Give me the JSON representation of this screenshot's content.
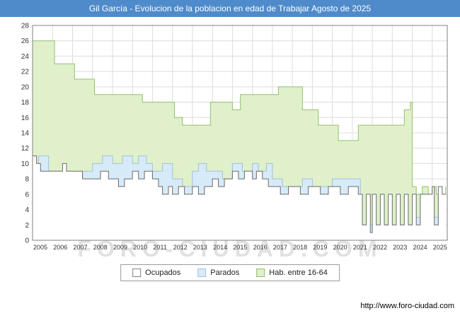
{
  "title_bar": {
    "text": "Gil García - Evolucion de la poblacion en edad de Trabajar Agosto de 2025",
    "bg": "#4f8bca"
  },
  "watermark": "FORO-CIUDAD.COM",
  "footer": {
    "url": "http://www.foro-ciudad.com"
  },
  "legend": [
    {
      "label": "Ocupados",
      "fill": "#ffffff",
      "border": "#808080"
    },
    {
      "label": "Parados",
      "fill": "#d7eaf8",
      "border": "#a3c1dc"
    },
    {
      "label": "Hab. entre 16-64",
      "fill": "#dff0cb",
      "border": "#96c06e"
    }
  ],
  "chart_data": {
    "type": "area",
    "title": "Gil García - Evolucion de la poblacion en edad de Trabajar Agosto de 2025",
    "xlabel": "",
    "ylabel": "",
    "x_range": [
      2005,
      2025.75
    ],
    "ylim": [
      0,
      28
    ],
    "x_ticks": [
      2005,
      2006,
      2007,
      2008,
      2009,
      2010,
      2011,
      2012,
      2013,
      2014,
      2015,
      2016,
      2017,
      2018,
      2019,
      2020,
      2021,
      2022,
      2023,
      2024,
      2025
    ],
    "y_ticks": [
      0,
      2,
      4,
      6,
      8,
      10,
      12,
      14,
      16,
      18,
      20,
      22,
      24,
      26,
      28
    ],
    "legend_position": "bottom",
    "grid": true,
    "colors": {
      "grid": "#dcdcdc",
      "plot_border": "#808080",
      "tick_text": "#333333"
    },
    "series": [
      {
        "name": "Hab. entre 16-64",
        "fill": "#dff0cb",
        "stroke": "#96c06e",
        "points": [
          [
            2005.0,
            26
          ],
          [
            2006.1,
            23
          ],
          [
            2007.1,
            21
          ],
          [
            2008.1,
            19
          ],
          [
            2010.5,
            18
          ],
          [
            2012.1,
            16
          ],
          [
            2012.5,
            15
          ],
          [
            2013.9,
            18
          ],
          [
            2015.0,
            17
          ],
          [
            2015.4,
            19
          ],
          [
            2017.3,
            20
          ],
          [
            2018.5,
            17
          ],
          [
            2019.3,
            15
          ],
          [
            2020.3,
            13
          ],
          [
            2021.3,
            15
          ],
          [
            2023.6,
            17
          ],
          [
            2023.9,
            18
          ],
          [
            2024.0,
            7
          ],
          [
            2024.2,
            6
          ],
          [
            2024.5,
            7
          ],
          [
            2024.8,
            6
          ],
          [
            2025.0,
            7
          ],
          [
            2025.2,
            6
          ],
          [
            2025.67,
            7
          ]
        ]
      },
      {
        "name": "Parados",
        "fill": "#d7eaf8",
        "stroke": "#a3c1dc",
        "points": [
          [
            2005.0,
            9
          ],
          [
            2005.3,
            11
          ],
          [
            2005.8,
            9
          ],
          [
            2006.0,
            9
          ],
          [
            2006.5,
            9
          ],
          [
            2007.0,
            8
          ],
          [
            2007.5,
            9
          ],
          [
            2008.0,
            10
          ],
          [
            2008.5,
            11
          ],
          [
            2009.0,
            10
          ],
          [
            2009.5,
            11
          ],
          [
            2010.0,
            10
          ],
          [
            2010.3,
            11
          ],
          [
            2010.7,
            10
          ],
          [
            2011.0,
            9
          ],
          [
            2011.5,
            10
          ],
          [
            2012.0,
            8
          ],
          [
            2012.5,
            7
          ],
          [
            2013.0,
            9
          ],
          [
            2013.3,
            10
          ],
          [
            2013.7,
            9
          ],
          [
            2014.0,
            9
          ],
          [
            2014.5,
            8
          ],
          [
            2015.0,
            10
          ],
          [
            2015.5,
            9
          ],
          [
            2016.0,
            10
          ],
          [
            2016.3,
            9
          ],
          [
            2016.7,
            10
          ],
          [
            2017.0,
            8
          ],
          [
            2017.5,
            7
          ],
          [
            2018.0,
            7
          ],
          [
            2018.5,
            8
          ],
          [
            2019.0,
            7
          ],
          [
            2019.5,
            7
          ],
          [
            2020.0,
            8
          ],
          [
            2020.5,
            8
          ],
          [
            2021.0,
            8
          ],
          [
            2021.4,
            2
          ],
          [
            2022.0,
            2
          ],
          [
            2023.0,
            2
          ],
          [
            2024.0,
            3
          ],
          [
            2025.0,
            3
          ],
          [
            2025.67,
            3
          ]
        ]
      },
      {
        "name": "Ocupados",
        "fill": "#ffffff",
        "stroke": "#6b6b6b",
        "points": [
          [
            2005.0,
            11
          ],
          [
            2005.2,
            10
          ],
          [
            2005.4,
            9
          ],
          [
            2006.0,
            9
          ],
          [
            2006.5,
            10
          ],
          [
            2006.7,
            9
          ],
          [
            2007.0,
            9
          ],
          [
            2007.5,
            8
          ],
          [
            2008.0,
            8
          ],
          [
            2008.4,
            9
          ],
          [
            2008.8,
            8
          ],
          [
            2009.0,
            8
          ],
          [
            2009.3,
            7
          ],
          [
            2009.6,
            8
          ],
          [
            2010.0,
            9
          ],
          [
            2010.3,
            8
          ],
          [
            2010.6,
            9
          ],
          [
            2011.0,
            8
          ],
          [
            2011.3,
            7
          ],
          [
            2011.5,
            6
          ],
          [
            2011.8,
            7
          ],
          [
            2012.0,
            6
          ],
          [
            2012.3,
            7
          ],
          [
            2012.6,
            6
          ],
          [
            2013.0,
            7
          ],
          [
            2013.3,
            6
          ],
          [
            2013.6,
            7
          ],
          [
            2014.0,
            8
          ],
          [
            2014.3,
            7
          ],
          [
            2014.6,
            8
          ],
          [
            2015.0,
            9
          ],
          [
            2015.3,
            8
          ],
          [
            2015.6,
            9
          ],
          [
            2016.0,
            8
          ],
          [
            2016.2,
            9
          ],
          [
            2016.5,
            8
          ],
          [
            2016.8,
            7
          ],
          [
            2017.0,
            7
          ],
          [
            2017.4,
            6
          ],
          [
            2017.8,
            7
          ],
          [
            2018.0,
            7
          ],
          [
            2018.4,
            6
          ],
          [
            2018.8,
            7
          ],
          [
            2019.0,
            7
          ],
          [
            2019.4,
            6
          ],
          [
            2019.8,
            7
          ],
          [
            2020.0,
            7
          ],
          [
            2020.4,
            6
          ],
          [
            2020.8,
            7
          ],
          [
            2021.0,
            7
          ],
          [
            2021.3,
            6
          ],
          [
            2021.5,
            2
          ],
          [
            2021.7,
            6
          ],
          [
            2021.9,
            1
          ],
          [
            2022.0,
            6
          ],
          [
            2022.2,
            2
          ],
          [
            2022.4,
            6
          ],
          [
            2022.6,
            2
          ],
          [
            2022.8,
            6
          ],
          [
            2023.0,
            2
          ],
          [
            2023.2,
            6
          ],
          [
            2023.4,
            2
          ],
          [
            2023.6,
            6
          ],
          [
            2023.8,
            2
          ],
          [
            2024.0,
            6
          ],
          [
            2024.2,
            2
          ],
          [
            2024.4,
            6
          ],
          [
            2024.7,
            6
          ],
          [
            2025.0,
            7
          ],
          [
            2025.1,
            2
          ],
          [
            2025.3,
            7
          ],
          [
            2025.5,
            6
          ],
          [
            2025.67,
            6
          ]
        ]
      }
    ]
  }
}
